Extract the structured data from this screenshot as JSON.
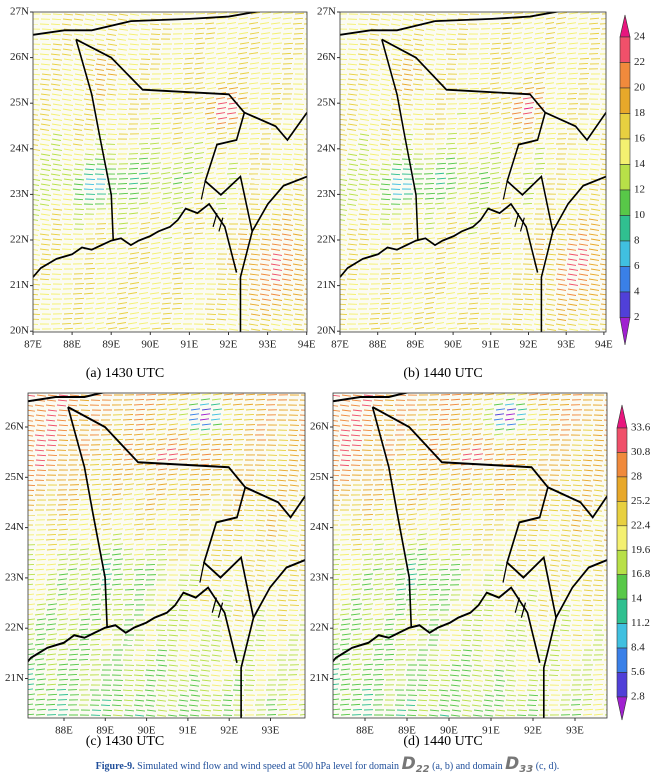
{
  "panels": [
    {
      "caption": "(a) 1430 UTC",
      "xticks": [
        "87E",
        "88E",
        "89E",
        "90E",
        "91E",
        "92E",
        "93E",
        "94E"
      ],
      "yticks": [
        "27N",
        "26N",
        "25N",
        "24N",
        "23N",
        "22N",
        "21N",
        "20N"
      ]
    },
    {
      "caption": "(b) 1440 UTC",
      "xticks": [
        "87E",
        "88E",
        "89E",
        "90E",
        "91E",
        "92E",
        "93E",
        "94E"
      ],
      "yticks": [
        "27N",
        "26N",
        "25N",
        "24N",
        "23N",
        "22N",
        "21N",
        "20N"
      ]
    },
    {
      "caption": "(c) 1430 UTC",
      "xticks": [
        "88E",
        "89E",
        "90E",
        "91E",
        "92E",
        "93E"
      ],
      "yticks": [
        "26N",
        "25N",
        "24N",
        "23N",
        "22N",
        "21N"
      ]
    },
    {
      "caption": "(d) 1440 UTC",
      "xticks": [
        "88E",
        "89E",
        "90E",
        "91E",
        "92E",
        "93E"
      ],
      "yticks": [
        "26N",
        "25N",
        "24N",
        "23N",
        "22N",
        "21N"
      ]
    }
  ],
  "colorbars": [
    {
      "ticks": [
        "24",
        "22",
        "20",
        "18",
        "16",
        "14",
        "12",
        "10",
        "8",
        "6",
        "4",
        "2"
      ],
      "colors": [
        "#e8167e",
        "#f0506a",
        "#f08a3c",
        "#e8a82a",
        "#e8d040",
        "#f4f070",
        "#b8e048",
        "#58c848",
        "#30c090",
        "#40c0e0",
        "#3a80e8",
        "#5040d8",
        "#a020d0"
      ]
    },
    {
      "ticks": [
        "33.6",
        "30.8",
        "28",
        "25.2",
        "22.4",
        "19.6",
        "16.8",
        "14",
        "11.2",
        "8.4",
        "5.6",
        "2.8"
      ],
      "colors": [
        "#e8167e",
        "#f0506a",
        "#f08a3c",
        "#e8a82a",
        "#e8d040",
        "#f4f070",
        "#b8e048",
        "#58c848",
        "#30c090",
        "#40c0e0",
        "#3a80e8",
        "#5040d8",
        "#a020d0"
      ]
    }
  ],
  "caption": {
    "label": "Figure-9.",
    "text1": "Simulated wind flow and wind speed at 500 hPa level for domain",
    "d1": "D",
    "d1sub": "22",
    "text2": "(a, b) and domain",
    "d2": "D",
    "d2sub": "33",
    "text3": "(c, d)."
  }
}
